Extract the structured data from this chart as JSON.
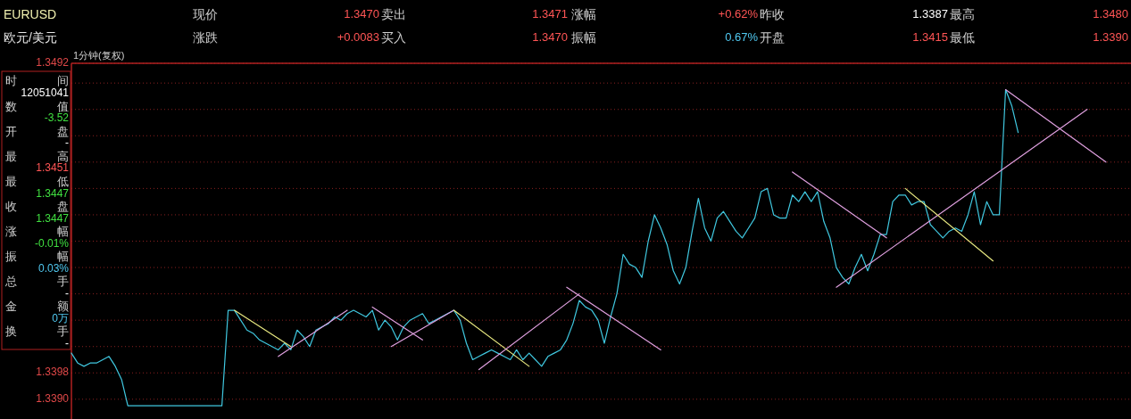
{
  "chart_data": {
    "type": "line",
    "annotations": [
      "EURUSD",
      "现价",
      "1.3470",
      "卖出",
      "1.3471",
      "涨幅",
      "+0.62%",
      "昨收",
      "1.3387",
      "最高",
      "1.3480",
      "欧元/美元",
      "涨跌",
      "+0.0083",
      "买入",
      "1.3470",
      "振幅",
      "0.67%",
      "开盘",
      "1.3415",
      "最低",
      "1.3390",
      "1分钟(复权)",
      "时",
      "间",
      "12051041",
      "数",
      "值",
      "-3.52",
      "开",
      "盘",
      "-",
      "最",
      "高",
      "1.3451",
      "最",
      "低",
      "1.3447",
      "收",
      "盘",
      "1.3447",
      "涨",
      "幅",
      "-0.01%",
      "振",
      "幅",
      "0.03%",
      "总",
      "手",
      "-",
      "金",
      "额",
      "0万",
      "换",
      "手",
      "-"
    ],
    "categories": [
      null,
      null,
      null,
      null,
      null,
      null,
      null,
      null,
      null,
      null,
      null,
      null,
      null,
      null,
      null,
      null,
      null,
      null,
      null,
      null,
      null,
      null,
      null,
      null,
      null,
      null,
      null,
      null,
      null,
      null,
      null,
      null,
      null,
      null,
      null,
      null,
      null,
      null,
      null,
      null,
      null,
      null,
      null,
      null,
      null,
      null,
      null,
      null,
      null,
      null,
      null,
      null,
      null,
      null,
      null,
      null,
      null,
      null,
      null,
      null,
      null,
      null,
      null,
      null,
      null,
      null,
      null,
      null,
      null,
      null,
      null,
      null,
      null,
      null,
      null,
      null,
      null,
      null,
      null,
      null,
      null,
      null,
      null,
      null,
      null,
      null,
      null,
      null,
      null,
      null,
      null,
      null,
      null,
      null,
      null,
      null,
      null,
      null,
      null,
      null,
      null,
      null,
      null,
      null,
      null,
      null,
      null,
      null,
      null,
      null,
      null,
      null,
      null,
      null,
      null,
      null,
      null,
      null,
      null,
      null,
      null,
      null,
      null,
      null,
      null,
      null,
      null,
      null,
      null,
      null,
      null,
      null,
      null,
      null,
      null,
      null,
      null,
      null,
      null,
      null,
      null,
      null,
      null,
      null,
      null,
      null,
      null,
      null,
      null,
      null,
      null,
      null,
      null,
      null,
      null,
      null,
      null,
      null,
      null,
      null,
      null,
      null,
      null,
      null,
      null,
      null,
      null,
      null,
      null,
      null
    ],
    "series": [
      {
        "color": "#40c8e0",
        "values": [
          1.3404,
          1.3401,
          1.34,
          1.3401,
          1.3401,
          1.3402,
          1.3403,
          1.34,
          1.3396,
          1.3388,
          1.3388,
          1.3388,
          1.3388,
          1.3388,
          1.3388,
          1.3388,
          1.3388,
          1.3388,
          1.3388,
          1.3388,
          1.3388,
          1.3388,
          1.3388,
          1.3388,
          1.3388,
          1.3417,
          1.3417,
          1.3414,
          1.3411,
          1.341,
          1.3408,
          1.3407,
          1.3406,
          1.3405,
          1.3407,
          1.3405,
          1.3411,
          1.3409,
          1.3406,
          1.3411,
          1.3412,
          1.3413,
          1.3415,
          1.3414,
          1.3416,
          1.3417,
          1.3416,
          1.3415,
          1.3417,
          1.3411,
          1.3414,
          1.3412,
          1.3408,
          1.3412,
          1.3414,
          1.3415,
          1.3416,
          1.3413,
          1.3414,
          1.3415,
          1.3416,
          1.3417,
          1.3414,
          1.3407,
          1.3402,
          1.3403,
          1.3404,
          1.3405,
          1.3404,
          1.3403,
          1.3402,
          1.3405,
          1.3402,
          1.3404,
          1.3402,
          1.34,
          1.3403,
          1.3404,
          1.3405,
          1.3408,
          1.3413,
          1.342,
          1.3418,
          1.3417,
          1.3414,
          1.3407,
          1.3415,
          1.3422,
          1.3434,
          1.3431,
          1.343,
          1.3427,
          1.3438,
          1.3446,
          1.3442,
          1.3437,
          1.3429,
          1.3425,
          1.343,
          1.3441,
          1.3451,
          1.3442,
          1.3438,
          1.3445,
          1.3447,
          1.3444,
          1.3441,
          1.3439,
          1.3442,
          1.3445,
          1.3453,
          1.3454,
          1.3446,
          1.3445,
          1.3445,
          1.3452,
          1.345,
          1.3453,
          1.345,
          1.3453,
          1.3444,
          1.3439,
          1.343,
          1.3427,
          1.3425,
          1.343,
          1.3434,
          1.3429,
          1.3434,
          1.344,
          1.344,
          1.345,
          1.3452,
          1.3452,
          1.3449,
          1.345,
          1.345,
          1.3443,
          1.3441,
          1.3439,
          1.3441,
          1.3442,
          1.3441,
          1.3446,
          1.3453,
          1.3443,
          1.345,
          1.3446,
          1.3446,
          1.3484,
          1.3479,
          1.3471,
          null,
          null,
          null,
          null,
          null,
          null,
          null,
          null,
          null,
          null,
          null,
          null,
          null,
          null,
          null,
          null,
          null,
          null
        ]
      },
      {
        "color": "#e8e880",
        "values": [
          null,
          null,
          null,
          null,
          null,
          null,
          null,
          null,
          null,
          null,
          null,
          null,
          null,
          null,
          null,
          null,
          null,
          null,
          null,
          null,
          null,
          null,
          null,
          null,
          null,
          null,
          1.3417,
          null,
          null,
          null,
          null,
          null,
          null,
          null,
          null,
          1.3406,
          null,
          null,
          null,
          null,
          null,
          null,
          null,
          null,
          null,
          null,
          null,
          null,
          null,
          null,
          null,
          null,
          null,
          null,
          null,
          null,
          null,
          null,
          null,
          null,
          null,
          null,
          null,
          null,
          null,
          null,
          null,
          null,
          null,
          null,
          null,
          null,
          null,
          null,
          null,
          null,
          null,
          null,
          null,
          null,
          null,
          null,
          null,
          null,
          null,
          null,
          null,
          null,
          null,
          null,
          null,
          null,
          null,
          null,
          null,
          null,
          null,
          null,
          null,
          null,
          null,
          null,
          null,
          null,
          null,
          null,
          null,
          null,
          null,
          null,
          null,
          null,
          null,
          null,
          null,
          null,
          null,
          null,
          null,
          null,
          null,
          null,
          null,
          null,
          null,
          null,
          null,
          null,
          null,
          null,
          null,
          null,
          null,
          null,
          null,
          null,
          null,
          null,
          null,
          null,
          null,
          null,
          null,
          null,
          null,
          null,
          null,
          null,
          null,
          null,
          null,
          null,
          null,
          null,
          null,
          null,
          null,
          null,
          null,
          null,
          null,
          null,
          null,
          null,
          null,
          null,
          null,
          null,
          null,
          null
        ]
      },
      {
        "color": "#e0a0e0",
        "values": [
          null,
          null,
          null,
          null,
          null,
          null,
          null,
          null,
          null,
          null,
          null,
          null,
          null,
          null,
          null,
          null,
          null,
          null,
          null,
          null,
          null,
          null,
          null,
          null,
          null,
          null,
          null,
          null,
          null,
          null,
          null,
          null,
          null,
          1.3403,
          null,
          null,
          null,
          null,
          null,
          null,
          null,
          null,
          null,
          null,
          1.3417,
          null,
          null,
          null,
          null,
          null,
          null,
          null,
          null,
          null,
          null,
          null,
          null,
          null,
          null,
          null,
          null,
          null,
          null,
          null,
          null,
          null,
          null,
          null,
          null,
          null,
          null,
          null,
          null,
          null,
          null,
          null,
          null,
          null,
          null,
          null,
          null,
          null,
          null,
          null,
          null,
          null,
          null,
          null,
          null,
          null,
          null,
          null,
          null,
          null,
          null,
          null,
          null,
          null,
          null,
          null,
          null,
          null,
          null,
          null,
          null,
          null,
          null,
          null,
          null,
          null,
          null,
          null,
          null,
          null,
          null,
          null,
          null,
          null,
          null,
          null,
          null,
          null,
          null,
          null,
          null,
          null,
          null,
          null,
          null,
          null,
          null,
          null,
          null,
          null,
          null,
          null,
          null,
          null,
          null,
          null,
          null,
          null,
          null,
          null,
          null,
          null,
          null,
          null,
          null,
          null,
          null,
          null,
          null,
          null,
          null,
          null,
          null,
          null,
          null,
          null,
          null,
          null,
          null,
          null,
          null,
          null,
          null,
          null,
          null,
          null
        ]
      },
      {
        "color": "#e0a0e0",
        "values": [
          null,
          null,
          null,
          null,
          null,
          null,
          null,
          null,
          null,
          null,
          null,
          null,
          null,
          null,
          null,
          null,
          null,
          null,
          null,
          null,
          null,
          null,
          null,
          null,
          null,
          null,
          null,
          null,
          null,
          null,
          null,
          null,
          null,
          null,
          null,
          null,
          null,
          null,
          null,
          null,
          null,
          null,
          null,
          null,
          null,
          null,
          null,
          null,
          1.3418,
          null,
          null,
          null,
          null,
          null,
          null,
          null,
          1.3408,
          null,
          null,
          null,
          null,
          null,
          null,
          null,
          null,
          null,
          null,
          null,
          null,
          null,
          null,
          null,
          null,
          null,
          null,
          null,
          null,
          null,
          null,
          null,
          null,
          null,
          null,
          null,
          null,
          null,
          null,
          null,
          null,
          null,
          null,
          null,
          null,
          null,
          null,
          null,
          null,
          null,
          null,
          null,
          null,
          null,
          null,
          null,
          null,
          null,
          null,
          null,
          null,
          null,
          null,
          null,
          null,
          null,
          null,
          null,
          null,
          null,
          null,
          null,
          null,
          null,
          null,
          null,
          null,
          null,
          null,
          null,
          null,
          null,
          null,
          null,
          null,
          null,
          null,
          null,
          null,
          null,
          null,
          null,
          null,
          null,
          null,
          null,
          null,
          null,
          null,
          null,
          null,
          null,
          null,
          null,
          null,
          null,
          null,
          null,
          null,
          null,
          null,
          null,
          null,
          null,
          null,
          null,
          null,
          null,
          null,
          null,
          null,
          null
        ]
      },
      {
        "color": "#e0a0e0",
        "values": [
          null,
          null,
          null,
          null,
          null,
          null,
          null,
          null,
          null,
          null,
          null,
          null,
          null,
          null,
          null,
          null,
          null,
          null,
          null,
          null,
          null,
          null,
          null,
          null,
          null,
          null,
          null,
          null,
          null,
          null,
          null,
          null,
          null,
          null,
          null,
          null,
          null,
          null,
          null,
          null,
          null,
          null,
          null,
          null,
          null,
          null,
          null,
          null,
          null,
          null,
          null,
          1.3406,
          null,
          null,
          null,
          null,
          null,
          null,
          null,
          null,
          null,
          1.3417,
          null,
          null,
          null,
          null,
          null,
          null,
          null,
          null,
          null,
          null,
          null,
          null,
          null,
          null,
          null,
          null,
          null,
          null,
          null,
          null,
          null,
          null,
          null,
          null,
          null,
          null,
          null,
          null,
          null,
          null,
          null,
          null,
          null,
          null,
          null,
          null,
          null,
          null,
          null,
          null,
          null,
          null,
          null,
          null,
          null,
          null,
          null,
          null,
          null,
          null,
          null,
          null,
          null,
          null,
          null,
          null,
          null,
          null,
          null,
          null,
          null,
          null,
          null,
          null,
          null,
          null,
          null,
          null,
          null,
          null,
          null,
          null,
          null,
          null,
          null,
          null,
          null,
          null,
          null,
          null,
          null,
          null,
          null,
          null,
          null,
          null,
          null,
          null,
          null,
          null,
          null,
          null,
          null,
          null,
          null,
          null,
          null,
          null,
          null,
          null,
          null,
          null,
          null,
          null,
          null,
          null,
          null,
          null
        ]
      },
      {
        "color": "#e8e880",
        "values": [
          null,
          null,
          null,
          null,
          null,
          null,
          null,
          null,
          null,
          null,
          null,
          null,
          null,
          null,
          null,
          null,
          null,
          null,
          null,
          null,
          null,
          null,
          null,
          null,
          null,
          null,
          null,
          null,
          null,
          null,
          null,
          null,
          null,
          null,
          null,
          null,
          null,
          null,
          null,
          null,
          null,
          null,
          null,
          null,
          null,
          null,
          null,
          null,
          null,
          null,
          null,
          null,
          null,
          null,
          null,
          null,
          null,
          null,
          null,
          null,
          null,
          1.3417,
          null,
          null,
          null,
          null,
          null,
          null,
          null,
          null,
          null,
          null,
          null,
          1.34,
          null,
          null,
          null,
          null,
          null,
          null,
          null,
          null,
          null,
          null,
          null,
          null,
          null,
          null,
          null,
          null,
          null,
          null,
          null,
          null,
          null,
          null,
          null,
          null,
          null,
          null,
          null,
          null,
          null,
          null,
          null,
          null,
          null,
          null,
          null,
          null,
          null,
          null,
          null,
          null,
          null,
          null,
          null,
          null,
          null,
          null,
          null,
          null,
          null,
          null,
          null,
          null,
          null,
          null,
          null,
          null,
          null,
          null,
          null,
          null,
          null,
          null,
          null,
          null,
          null,
          null,
          null,
          null,
          null,
          null,
          null,
          null,
          null,
          null,
          null,
          null,
          null,
          null,
          null,
          null,
          null,
          null,
          null,
          null,
          null,
          null,
          null,
          null,
          null,
          null,
          null,
          null,
          null,
          null,
          null,
          null
        ]
      },
      {
        "color": "#e0a0e0",
        "values": [
          null,
          null,
          null,
          null,
          null,
          null,
          null,
          null,
          null,
          null,
          null,
          null,
          null,
          null,
          null,
          null,
          null,
          null,
          null,
          null,
          null,
          null,
          null,
          null,
          null,
          null,
          null,
          null,
          null,
          null,
          null,
          null,
          null,
          null,
          null,
          null,
          null,
          null,
          null,
          null,
          null,
          null,
          null,
          null,
          null,
          null,
          null,
          null,
          null,
          null,
          null,
          null,
          null,
          null,
          null,
          null,
          null,
          null,
          null,
          null,
          null,
          null,
          null,
          null,
          null,
          1.3399,
          null,
          null,
          null,
          null,
          null,
          null,
          null,
          null,
          null,
          null,
          null,
          null,
          null,
          null,
          null,
          1.3422,
          null,
          null,
          null,
          null,
          null,
          null,
          null,
          null,
          null,
          null,
          null,
          null,
          null,
          null,
          null,
          null,
          null,
          null,
          null,
          null,
          null,
          null,
          null,
          null,
          null,
          null,
          null,
          null,
          null,
          null,
          null,
          null,
          null,
          null,
          null,
          null,
          null,
          null,
          null,
          null,
          null,
          null,
          null,
          null,
          null,
          null,
          null,
          null,
          null,
          null,
          null,
          null,
          null,
          null,
          null,
          null,
          null,
          null,
          null,
          null,
          null,
          null,
          null,
          null,
          null,
          null,
          null,
          null,
          null,
          null,
          null,
          null,
          null,
          null,
          null,
          null,
          null,
          null,
          null,
          null,
          null,
          null,
          null,
          null,
          null,
          null,
          null,
          null
        ]
      },
      {
        "color": "#e0a0e0",
        "values": [
          null,
          null,
          null,
          null,
          null,
          null,
          null,
          null,
          null,
          null,
          null,
          null,
          null,
          null,
          null,
          null,
          null,
          null,
          null,
          null,
          null,
          null,
          null,
          null,
          null,
          null,
          null,
          null,
          null,
          null,
          null,
          null,
          null,
          null,
          null,
          null,
          null,
          null,
          null,
          null,
          null,
          null,
          null,
          null,
          null,
          null,
          null,
          null,
          null,
          null,
          null,
          null,
          null,
          null,
          null,
          null,
          null,
          null,
          null,
          null,
          null,
          null,
          null,
          null,
          null,
          null,
          null,
          null,
          null,
          null,
          null,
          null,
          null,
          null,
          null,
          null,
          null,
          null,
          null,
          1.3424,
          null,
          null,
          null,
          null,
          null,
          null,
          null,
          null,
          null,
          null,
          null,
          null,
          null,
          null,
          1.3405,
          null,
          null,
          null,
          null,
          null,
          null,
          null,
          null,
          null,
          null,
          null,
          null,
          null,
          null,
          null,
          null,
          null,
          null,
          null,
          null,
          null,
          null,
          null,
          null,
          null,
          null,
          null,
          null,
          null,
          null,
          null,
          null,
          null,
          null,
          null,
          null,
          null,
          null,
          null,
          null,
          null,
          null,
          null,
          null,
          null,
          null,
          null,
          null,
          null,
          null,
          null,
          null,
          null,
          null,
          null,
          null,
          null,
          null,
          null,
          null,
          null,
          null,
          null,
          null,
          null,
          null,
          null,
          null,
          null,
          null,
          null,
          null,
          null,
          null,
          null
        ]
      },
      {
        "color": "#e0a0e0",
        "values": [
          null,
          null,
          null,
          null,
          null,
          null,
          null,
          null,
          null,
          null,
          null,
          null,
          null,
          null,
          null,
          null,
          null,
          null,
          null,
          null,
          null,
          null,
          null,
          null,
          null,
          null,
          null,
          null,
          null,
          null,
          null,
          null,
          null,
          null,
          null,
          null,
          null,
          null,
          null,
          null,
          null,
          null,
          null,
          null,
          null,
          null,
          null,
          null,
          null,
          null,
          null,
          null,
          null,
          null,
          null,
          null,
          null,
          null,
          null,
          null,
          null,
          null,
          null,
          null,
          null,
          null,
          null,
          null,
          null,
          null,
          null,
          null,
          null,
          null,
          null,
          null,
          null,
          null,
          null,
          null,
          null,
          null,
          null,
          null,
          null,
          null,
          null,
          null,
          null,
          null,
          null,
          null,
          null,
          null,
          null,
          null,
          null,
          null,
          null,
          null,
          null,
          null,
          null,
          null,
          null,
          null,
          null,
          null,
          null,
          null,
          null,
          null,
          null,
          null,
          null,
          1.3459,
          null,
          null,
          null,
          null,
          null,
          null,
          null,
          null,
          null,
          null,
          null,
          null,
          null,
          null,
          1.3439,
          null,
          null,
          null,
          null,
          null,
          null,
          null,
          null,
          null,
          null,
          null,
          null,
          null,
          null,
          null,
          null,
          null,
          null,
          null,
          null,
          null,
          null,
          null,
          null,
          null,
          null,
          null,
          null,
          null,
          null,
          null,
          null,
          null,
          null,
          null,
          null,
          null,
          null,
          null
        ]
      },
      {
        "color": "#e0a0e0",
        "values": [
          null,
          null,
          null,
          null,
          null,
          null,
          null,
          null,
          null,
          null,
          null,
          null,
          null,
          null,
          null,
          null,
          null,
          null,
          null,
          null,
          null,
          null,
          null,
          null,
          null,
          null,
          null,
          null,
          null,
          null,
          null,
          null,
          null,
          null,
          null,
          null,
          null,
          null,
          null,
          null,
          null,
          null,
          null,
          null,
          null,
          null,
          null,
          null,
          null,
          null,
          null,
          null,
          null,
          null,
          null,
          null,
          null,
          null,
          null,
          null,
          null,
          null,
          null,
          null,
          null,
          null,
          null,
          null,
          null,
          null,
          null,
          null,
          null,
          null,
          null,
          null,
          null,
          null,
          null,
          null,
          null,
          null,
          null,
          null,
          null,
          null,
          null,
          null,
          null,
          null,
          null,
          null,
          null,
          null,
          null,
          null,
          null,
          null,
          null,
          null,
          null,
          null,
          null,
          null,
          null,
          null,
          null,
          null,
          null,
          null,
          null,
          null,
          null,
          null,
          null,
          null,
          null,
          null,
          null,
          null,
          null,
          null,
          1.3424,
          null,
          null,
          null,
          null,
          null,
          null,
          null,
          null,
          null,
          null,
          null,
          null,
          null,
          null,
          null,
          null,
          null,
          null,
          null,
          null,
          null,
          null,
          null,
          null,
          null,
          null,
          null,
          null,
          null,
          null,
          null,
          null,
          null,
          null,
          null,
          null,
          null,
          null,
          null,
          1.3478,
          null,
          null,
          null,
          null,
          null,
          null,
          null
        ]
      },
      {
        "color": "#e8e880",
        "values": [
          null,
          null,
          null,
          null,
          null,
          null,
          null,
          null,
          null,
          null,
          null,
          null,
          null,
          null,
          null,
          null,
          null,
          null,
          null,
          null,
          null,
          null,
          null,
          null,
          null,
          null,
          null,
          null,
          null,
          null,
          null,
          null,
          null,
          null,
          null,
          null,
          null,
          null,
          null,
          null,
          null,
          null,
          null,
          null,
          null,
          null,
          null,
          null,
          null,
          null,
          null,
          null,
          null,
          null,
          null,
          null,
          null,
          null,
          null,
          null,
          null,
          null,
          null,
          null,
          null,
          null,
          null,
          null,
          null,
          null,
          null,
          null,
          null,
          null,
          null,
          null,
          null,
          null,
          null,
          null,
          null,
          null,
          null,
          null,
          null,
          null,
          null,
          null,
          null,
          null,
          null,
          null,
          null,
          null,
          null,
          null,
          null,
          null,
          null,
          null,
          null,
          null,
          null,
          null,
          null,
          null,
          null,
          null,
          null,
          null,
          null,
          null,
          null,
          null,
          null,
          null,
          null,
          null,
          null,
          null,
          null,
          null,
          null,
          null,
          null,
          null,
          null,
          null,
          null,
          null,
          null,
          null,
          null,
          1.3454,
          null,
          null,
          null,
          null,
          null,
          null,
          null,
          null,
          null,
          null,
          null,
          null,
          null,
          1.3432,
          null,
          null,
          null,
          null,
          null,
          null,
          null,
          null,
          null,
          null,
          null,
          null,
          null,
          null,
          null,
          null,
          null,
          null,
          null,
          null,
          null,
          null
        ]
      },
      {
        "color": "#e0a0e0",
        "values": [
          null,
          null,
          null,
          null,
          null,
          null,
          null,
          null,
          null,
          null,
          null,
          null,
          null,
          null,
          null,
          null,
          null,
          null,
          null,
          null,
          null,
          null,
          null,
          null,
          null,
          null,
          null,
          null,
          null,
          null,
          null,
          null,
          null,
          null,
          null,
          null,
          null,
          null,
          null,
          null,
          null,
          null,
          null,
          null,
          null,
          null,
          null,
          null,
          null,
          null,
          null,
          null,
          null,
          null,
          null,
          null,
          null,
          null,
          null,
          null,
          null,
          null,
          null,
          null,
          null,
          null,
          null,
          null,
          null,
          null,
          null,
          null,
          null,
          null,
          null,
          null,
          null,
          null,
          null,
          null,
          null,
          null,
          null,
          null,
          null,
          null,
          null,
          null,
          null,
          null,
          null,
          null,
          null,
          null,
          null,
          null,
          null,
          null,
          null,
          null,
          null,
          null,
          null,
          null,
          null,
          null,
          null,
          null,
          null,
          null,
          null,
          null,
          null,
          null,
          null,
          null,
          null,
          null,
          null,
          null,
          null,
          null,
          null,
          null,
          null,
          null,
          null,
          null,
          null,
          null,
          null,
          null,
          null,
          null,
          null,
          null,
          null,
          null,
          null,
          null,
          null,
          null,
          null,
          null,
          null,
          null,
          null,
          null,
          null,
          1.3484,
          null,
          null,
          null,
          null,
          null,
          null,
          null,
          null,
          null,
          null,
          null,
          null,
          null,
          null,
          null,
          1.3462,
          null,
          null,
          null,
          null
        ]
      }
    ],
    "ylim": [
      1.3384,
      1.3492
    ],
    "yticks": [
      {
        "value": 1.339,
        "label": "1.3390"
      },
      1.3398,
      {
        "value": 1.3406,
        "label": null
      },
      {
        "value": 1.3414,
        "label": null
      },
      {
        "value": 1.3422,
        "label": null
      },
      {
        "value": 1.343,
        "label": null
      },
      {
        "value": 1.3438,
        "label": null
      },
      {
        "value": 1.3446,
        "label": null
      },
      {
        "value": 1.3454,
        "label": null
      },
      {
        "value": 1.3462,
        "label": null
      },
      {
        "value": 1.347,
        "label": null
      },
      {
        "value": 1.3478,
        "label": null
      },
      {
        "value": 1.3486,
        "label": null
      },
      1.3492
    ],
    "grid": "y"
  }
}
